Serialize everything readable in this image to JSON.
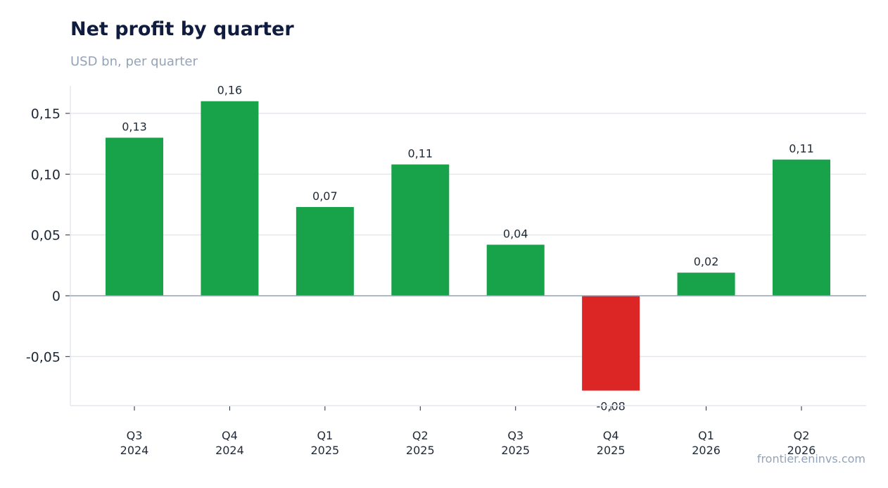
{
  "title": "Net profit by quarter",
  "subtitle": "USD bn, per quarter",
  "source": "frontier.eninvs.com",
  "colors": {
    "positive": "#18a34a",
    "negative": "#dc2626",
    "grid": "#e5e7ef",
    "zero_line": "#94a3b8"
  },
  "chart_data": {
    "type": "bar",
    "title": "Net profit by quarter",
    "subtitle": "USD bn, per quarter",
    "xlabel": "",
    "ylabel": "",
    "categories": [
      [
        "Q3",
        "2024"
      ],
      [
        "Q4",
        "2024"
      ],
      [
        "Q1",
        "2025"
      ],
      [
        "Q2",
        "2025"
      ],
      [
        "Q3",
        "2025"
      ],
      [
        "Q4",
        "2025"
      ],
      [
        "Q1",
        "2026"
      ],
      [
        "Q2",
        "2026"
      ]
    ],
    "values": [
      0.13,
      0.16,
      0.073,
      0.108,
      0.042,
      -0.078,
      0.019,
      0.112
    ],
    "data_labels": [
      "0,13",
      "0,16",
      "0,07",
      "0,11",
      "0,04",
      "-0,08",
      "0,02",
      "0,11"
    ],
    "ylim": [
      -0.09,
      0.172
    ],
    "yticks": [
      -0.05,
      0,
      0.05,
      0.1,
      0.15
    ],
    "ytick_labels": [
      "-0,05",
      "0",
      "0,05",
      "0,10",
      "0,15"
    ],
    "grid": true,
    "legend": "none"
  }
}
